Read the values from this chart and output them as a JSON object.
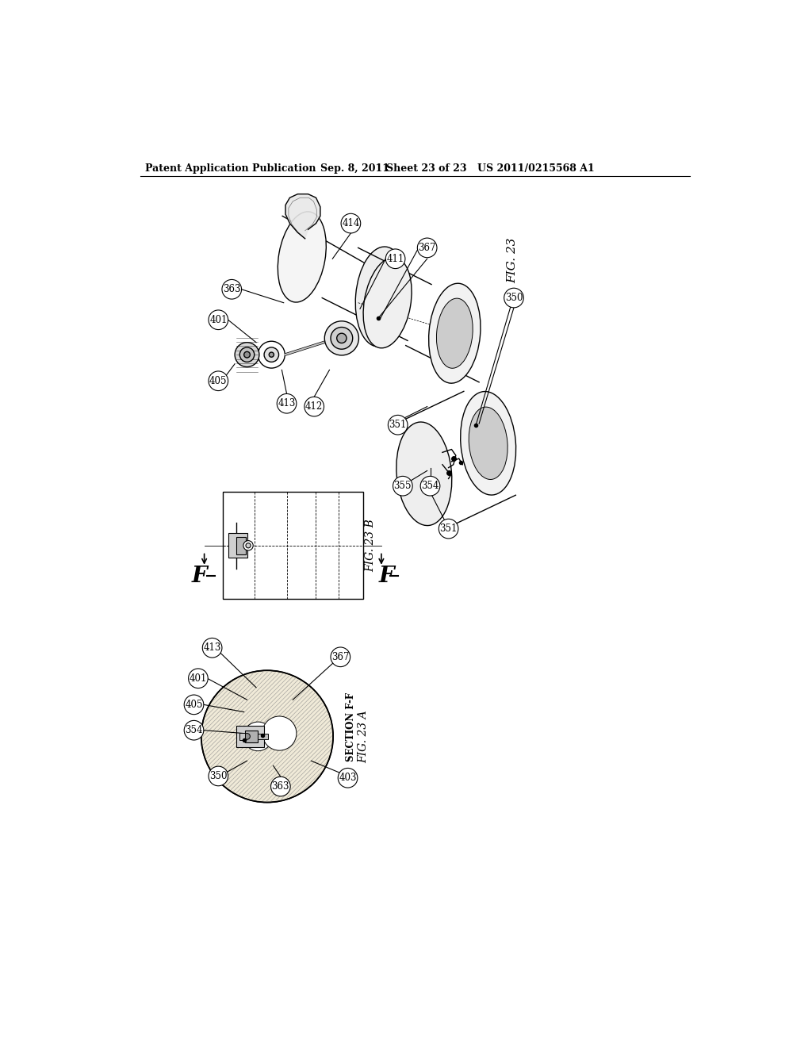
{
  "bg_color": "#ffffff",
  "header_text": "Patent Application Publication",
  "header_date": "Sep. 8, 2011",
  "header_sheet": "Sheet 23 of 23",
  "header_patent": "US 2011/0215568 A1",
  "fig_label_23": "FIG. 23",
  "fig_label_23a": "FIG. 23 A",
  "fig_label_23b": "FIG. 23 B",
  "section_label": "SECTION F-F",
  "lc": "#000000",
  "lw": 1.0
}
